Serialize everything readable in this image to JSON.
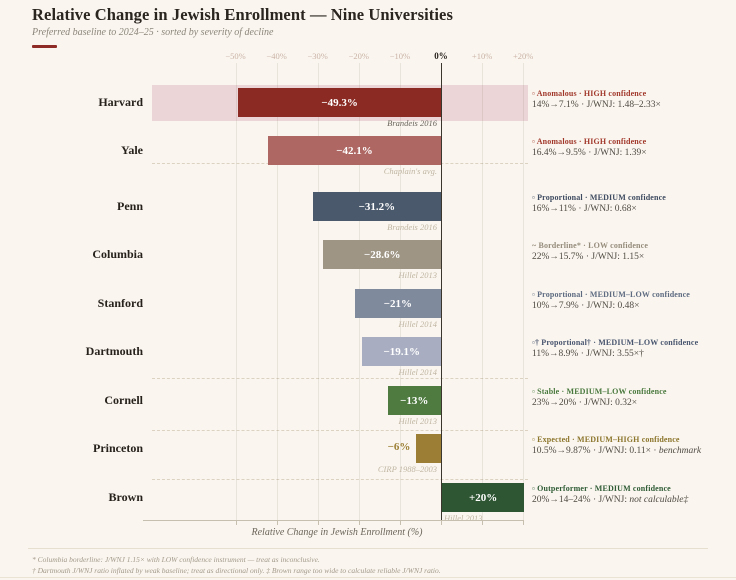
{
  "title": "Relative Change in Jewish Enrollment — Nine Universities",
  "subtitle": "Preferred baseline to 2024–25 · sorted by severity of decline",
  "accent_color": "#8E2B26",
  "axis": {
    "xlabel": "Relative Change in Jewish Enrollment (%)",
    "ticks": [
      {
        "label": "−50%",
        "value": -50
      },
      {
        "label": "−40%",
        "value": -40
      },
      {
        "label": "−30%",
        "value": -30
      },
      {
        "label": "−20%",
        "value": -20
      },
      {
        "label": "−10%",
        "value": -10
      },
      {
        "label": "0%",
        "value": 0
      },
      {
        "label": "+10%",
        "value": 10
      },
      {
        "label": "+20%",
        "value": 20
      }
    ]
  },
  "rows": [
    {
      "name": "Harvard",
      "value": -49.3,
      "value_label": "−49.3%",
      "source": "Brandeis 2016",
      "source_dark": true,
      "bar_color": "#8B2A23",
      "band_color": "#EBD5D7",
      "title_color": "#A1372B",
      "annotation_title": "▫ Anomalous · HIGH confidence",
      "detail": "14%→7.1% · J/WNJ: 1.48–2.33×",
      "detail_italic": ""
    },
    {
      "name": "Yale",
      "value": -42.1,
      "value_label": "−42.1%",
      "source": "Chaplain's avg.",
      "source_dark": false,
      "bar_color": "#AE6762",
      "title_color": "#A1372B",
      "annotation_title": "▫ Anomalous · HIGH confidence",
      "detail": "16.4%→9.5% · J/WNJ: 1.39×",
      "detail_italic": ""
    },
    {
      "name": "Penn",
      "value": -31.2,
      "value_label": "−31.2%",
      "source": "Brandeis 2016",
      "source_dark": false,
      "bar_color": "#4B596C",
      "title_color": "#3E4A60",
      "annotation_title": "▫ Proportional · MEDIUM confidence",
      "detail": "16%→11% · J/WNJ: 0.68×",
      "detail_italic": ""
    },
    {
      "name": "Columbia",
      "value": -28.6,
      "value_label": "−28.6%",
      "source": "Hillel 2013",
      "source_dark": false,
      "bar_color": "#9E9585",
      "title_color": "#958B7B",
      "annotation_title": "~ Borderline* · LOW confidence",
      "detail": "22%→15.7% · J/WNJ: 1.15×",
      "detail_italic": ""
    },
    {
      "name": "Stanford",
      "value": -21,
      "value_label": "−21%",
      "source": "Hillel 2014",
      "source_dark": false,
      "bar_color": "#7F8A9D",
      "title_color": "#5D6A80",
      "annotation_title": "▫ Proportional · MEDIUM–LOW confidence",
      "detail": "10%→7.9% · J/WNJ: 0.48×",
      "detail_italic": ""
    },
    {
      "name": "Dartmouth",
      "value": -19.1,
      "value_label": "−19.1%",
      "source": "Hillel 2014",
      "source_dark": false,
      "bar_color": "#A8ADC1",
      "title_color": "#49556F",
      "annotation_title": "▫† Proportional† · MEDIUM–LOW confidence",
      "detail": "11%→8.9% · J/WNJ: 3.55×†",
      "detail_italic": ""
    },
    {
      "name": "Cornell",
      "value": -13,
      "value_label": "−13%",
      "source": "Hillel 2013",
      "source_dark": false,
      "bar_color": "#4F7B41",
      "title_color": "#49783D",
      "annotation_title": "▫ Stable · MEDIUM–LOW confidence",
      "detail": "23%→20% · J/WNJ: 0.32×",
      "detail_italic": ""
    },
    {
      "name": "Princeton",
      "value": -6,
      "value_label": "−6%",
      "source": "CIRP 1988–2003",
      "source_dark": false,
      "bar_color": "#9C7F35",
      "title_color": "#8C752C",
      "annotation_title": "▫ Expected · MEDIUM–HIGH confidence",
      "detail": "10.5%→9.87% · J/WNJ: 0.11× · ",
      "detail_italic": "benchmark"
    },
    {
      "name": "Brown",
      "value": 20,
      "value_label": "+20%",
      "source": "Hillel 2013",
      "source_dark": false,
      "bar_color": "#2E5632",
      "title_color": "#2F5B35",
      "annotation_title": "▫ Outperformer · MEDIUM confidence",
      "detail": "20%→14–24% · J/WNJ: ",
      "detail_italic": "not calculable‡"
    }
  ],
  "footnotes": [
    "* Columbia borderline: J/WNJ 1.15× with LOW confidence instrument — treat as inconclusive.",
    "† Dartmouth J/WNJ ratio inflated by weak baseline; treat as directional only. ‡ Brown range too wide to calculate reliable J/WNJ ratio."
  ],
  "chart_data": {
    "type": "bar",
    "orientation": "horizontal",
    "title": "Relative Change in Jewish Enrollment — Nine Universities",
    "subtitle": "Preferred baseline to 2024–25 · sorted by severity of decline",
    "categories": [
      "Harvard",
      "Yale",
      "Penn",
      "Columbia",
      "Stanford",
      "Dartmouth",
      "Cornell",
      "Princeton",
      "Brown"
    ],
    "values": [
      -49.3,
      -42.1,
      -31.2,
      -28.6,
      -21,
      -19.1,
      -13,
      -6,
      20
    ],
    "bar_sources": [
      "Brandeis 2016",
      "Chaplain's avg.",
      "Brandeis 2016",
      "Hillel 2013",
      "Hillel 2014",
      "Hillel 2014",
      "Hillel 2013",
      "CIRP 1988–2003",
      "Hillel 2013"
    ],
    "annotations": [
      "▫ Anomalous · HIGH confidence — 14%→7.1% · J/WNJ: 1.48–2.33×",
      "▫ Anomalous · HIGH confidence — 16.4%→9.5% · J/WNJ: 1.39×",
      "▫ Proportional · MEDIUM confidence — 16%→11% · J/WNJ: 0.68×",
      "~ Borderline* · LOW confidence — 22%→15.7% · J/WNJ: 1.15×",
      "▫ Proportional · MEDIUM–LOW confidence — 10%→7.9% · J/WNJ: 0.48×",
      "▫† Proportional† · MEDIUM–LOW confidence — 11%→8.9% · J/WNJ: 3.55×†",
      "▫ Stable · MEDIUM–LOW confidence — 23%→20% · J/WNJ: 0.32×",
      "▫ Expected · MEDIUM–HIGH confidence — 10.5%→9.87% · J/WNJ: 0.11× · benchmark",
      "▫ Outperformer · MEDIUM confidence — 20%→14–24% · J/WNJ: not calculable‡"
    ],
    "xlabel": "Relative Change in Jewish Enrollment (%)",
    "xlim": [
      -70,
      22
    ],
    "xticks": [
      -50,
      -40,
      -30,
      -20,
      -10,
      0,
      10,
      20
    ],
    "grid": true,
    "legend": false,
    "highlight_band_category": "Harvard"
  }
}
